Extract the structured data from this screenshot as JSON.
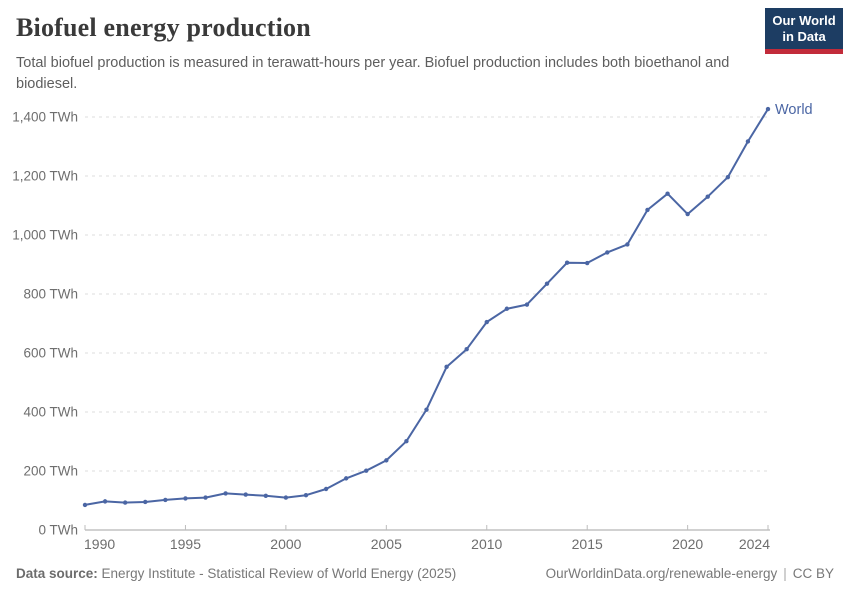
{
  "header": {
    "title": "Biofuel energy production",
    "subtitle": "Total biofuel production is measured in terawatt-hours per year. Biofuel production includes both bioethanol and biodiesel.",
    "logo": {
      "line1": "Our World",
      "line2": "in Data",
      "bg_color": "#1d3d63",
      "accent_color": "#c22b3a"
    }
  },
  "chart_data": {
    "type": "line",
    "title": "Biofuel energy production",
    "unit": "TWh",
    "xlabel": "",
    "ylabel": "",
    "xlim": [
      1990,
      2024
    ],
    "ylim": [
      0,
      1400
    ],
    "grid": "horizontal-dashed",
    "legend_position": "end-of-line-label",
    "x_ticks": [
      1990,
      1995,
      2000,
      2005,
      2010,
      2015,
      2020,
      2024
    ],
    "y_ticks": [
      0,
      200,
      400,
      600,
      800,
      1000,
      1200,
      1400
    ],
    "y_tick_labels": [
      "0 TWh",
      "200 TWh",
      "400 TWh",
      "600 TWh",
      "800 TWh",
      "1,000 TWh",
      "1,200 TWh",
      "1,400 TWh"
    ],
    "x": [
      1990,
      1991,
      1992,
      1993,
      1994,
      1995,
      1996,
      1997,
      1998,
      1999,
      2000,
      2001,
      2002,
      2003,
      2004,
      2005,
      2006,
      2007,
      2008,
      2009,
      2010,
      2011,
      2012,
      2013,
      2014,
      2015,
      2016,
      2017,
      2018,
      2019,
      2020,
      2021,
      2022,
      2023,
      2024
    ],
    "series": [
      {
        "name": "World",
        "color": "#4b66a4",
        "values": [
          85,
          97,
          93,
          95,
          102,
          107,
          110,
          124,
          120,
          116,
          110,
          118,
          139,
          175,
          201,
          236,
          301,
          408,
          553,
          613,
          705,
          750,
          764,
          835,
          906,
          905,
          941,
          968,
          1085,
          1140,
          1071,
          1130,
          1196,
          1317,
          1427
        ]
      }
    ],
    "colors": {
      "gridline": "#dcdcdc",
      "axis": "#a3a3a3",
      "tick_text": "#6e6e6e"
    }
  },
  "footer": {
    "datasource_label": "Data source:",
    "datasource": "Energy Institute - Statistical Review of World Energy (2025)",
    "url": "OurWorldinData.org/renewable-energy",
    "separator": "|",
    "license": "CC BY"
  }
}
